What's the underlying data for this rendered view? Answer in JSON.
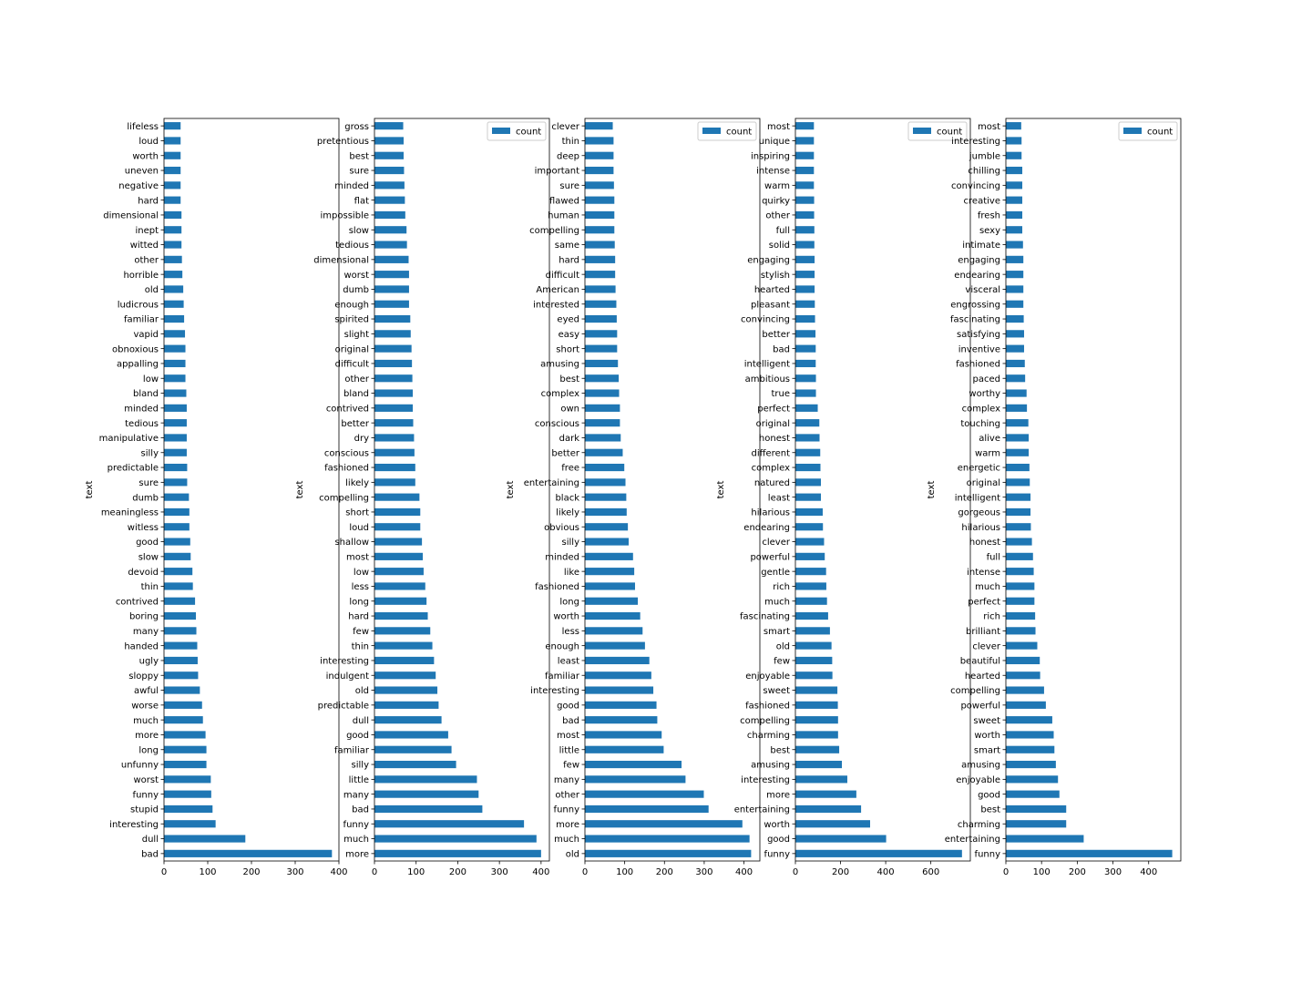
{
  "chart_data": [
    {
      "type": "bar",
      "orientation": "horizontal",
      "ylabel": "text",
      "legend": null,
      "xlim": [
        0,
        400
      ],
      "xticks": [
        0,
        100,
        200,
        300,
        400
      ],
      "series": [
        {
          "name": "count"
        }
      ],
      "categories": [
        "bad",
        "dull",
        "interesting",
        "stupid",
        "funny",
        "worst",
        "unfunny",
        "long",
        "more",
        "much",
        "worse",
        "awful",
        "sloppy",
        "ugly",
        "handed",
        "many",
        "boring",
        "contrived",
        "thin",
        "devoid",
        "slow",
        "good",
        "witless",
        "meaningless",
        "dumb",
        "sure",
        "predictable",
        "silly",
        "manipulative",
        "tedious",
        "minded",
        "bland",
        "low",
        "appalling",
        "obnoxious",
        "vapid",
        "familiar",
        "ludicrous",
        "old",
        "horrible",
        "other",
        "witted",
        "inept",
        "dimensional",
        "hard",
        "negative",
        "uneven",
        "worth",
        "loud",
        "lifeless"
      ],
      "values": [
        384,
        186,
        118,
        111,
        108,
        107,
        97,
        97,
        95,
        89,
        87,
        82,
        78,
        77,
        76,
        74,
        73,
        71,
        66,
        65,
        61,
        60,
        58,
        58,
        57,
        53,
        53,
        52,
        52,
        52,
        52,
        51,
        49,
        49,
        49,
        48,
        46,
        45,
        44,
        42,
        41,
        40,
        40,
        40,
        38,
        38,
        38,
        38,
        38,
        38
      ]
    },
    {
      "type": "bar",
      "orientation": "horizontal",
      "ylabel": "text",
      "legend": "upper right",
      "xlim": [
        0,
        420
      ],
      "xticks": [
        0,
        100,
        200,
        300,
        400
      ],
      "series": [
        {
          "name": "count"
        }
      ],
      "categories": [
        "more",
        "much",
        "funny",
        "bad",
        "many",
        "little",
        "silly",
        "familiar",
        "good",
        "dull",
        "predictable",
        "old",
        "indulgent",
        "interesting",
        "thin",
        "few",
        "hard",
        "long",
        "less",
        "low",
        "most",
        "shallow",
        "loud",
        "short",
        "compelling",
        "likely",
        "fashioned",
        "conscious",
        "dry",
        "better",
        "contrived",
        "bland",
        "other",
        "difficult",
        "original",
        "slight",
        "spirited",
        "enough",
        "dumb",
        "worst",
        "dimensional",
        "tedious",
        "slow",
        "impossible",
        "flat",
        "minded",
        "sure",
        "best",
        "pretentious",
        "gross"
      ],
      "values": [
        400,
        389,
        359,
        259,
        250,
        246,
        196,
        185,
        177,
        161,
        154,
        151,
        147,
        143,
        139,
        134,
        128,
        125,
        122,
        118,
        116,
        114,
        110,
        110,
        108,
        98,
        98,
        96,
        95,
        93,
        92,
        92,
        91,
        90,
        89,
        87,
        86,
        83,
        83,
        83,
        82,
        78,
        77,
        74,
        73,
        72,
        71,
        70,
        70,
        69
      ]
    },
    {
      "type": "bar",
      "orientation": "horizontal",
      "ylabel": "text",
      "legend": "upper right",
      "xlim": [
        0,
        440
      ],
      "xticks": [
        0,
        100,
        200,
        300,
        400
      ],
      "series": [
        {
          "name": "count"
        }
      ],
      "categories": [
        "old",
        "much",
        "more",
        "funny",
        "other",
        "many",
        "few",
        "little",
        "most",
        "bad",
        "good",
        "interesting",
        "familiar",
        "least",
        "enough",
        "less",
        "worth",
        "long",
        "fashioned",
        "like",
        "minded",
        "silly",
        "obvious",
        "likely",
        "black",
        "entertaining",
        "free",
        "better",
        "dark",
        "conscious",
        "own",
        "complex",
        "best",
        "amusing",
        "short",
        "easy",
        "eyed",
        "interested",
        "American",
        "difficult",
        "hard",
        "same",
        "compelling",
        "human",
        "flawed",
        "sure",
        "important",
        "deep",
        "thin",
        "clever"
      ],
      "values": [
        418,
        414,
        396,
        311,
        299,
        253,
        243,
        198,
        193,
        182,
        180,
        172,
        167,
        162,
        151,
        145,
        139,
        133,
        126,
        124,
        121,
        110,
        108,
        105,
        104,
        102,
        99,
        95,
        90,
        88,
        88,
        86,
        85,
        83,
        81,
        81,
        80,
        79,
        77,
        76,
        76,
        75,
        74,
        74,
        74,
        73,
        72,
        72,
        72,
        70
      ]
    },
    {
      "type": "bar",
      "orientation": "horizontal",
      "ylabel": "text",
      "legend": "upper right",
      "xlim": [
        0,
        775
      ],
      "xticks": [
        0,
        200,
        400,
        600
      ],
      "series": [
        {
          "name": "count"
        }
      ],
      "categories": [
        "funny",
        "good",
        "worth",
        "entertaining",
        "more",
        "interesting",
        "amusing",
        "best",
        "charming",
        "compelling",
        "fashioned",
        "sweet",
        "enjoyable",
        "few",
        "old",
        "smart",
        "fascinating",
        "much",
        "rich",
        "gentle",
        "powerful",
        "clever",
        "endearing",
        "hilarious",
        "least",
        "natured",
        "complex",
        "different",
        "honest",
        "original",
        "perfect",
        "true",
        "ambitious",
        "intelligent",
        "bad",
        "better",
        "convincing",
        "pleasant",
        "hearted",
        "stylish",
        "engaging",
        "solid",
        "full",
        "other",
        "quirky",
        "warm",
        "intense",
        "inspiring",
        "unique",
        "most"
      ],
      "values": [
        738,
        402,
        331,
        291,
        270,
        230,
        206,
        194,
        189,
        189,
        188,
        186,
        164,
        163,
        160,
        153,
        145,
        140,
        137,
        136,
        130,
        127,
        122,
        121,
        113,
        113,
        111,
        110,
        107,
        106,
        99,
        91,
        91,
        90,
        90,
        89,
        87,
        86,
        85,
        85,
        85,
        84,
        84,
        83,
        83,
        82,
        82,
        82,
        82,
        82
      ]
    },
    {
      "type": "bar",
      "orientation": "horizontal",
      "ylabel": "text",
      "legend": "upper right",
      "xlim": [
        0,
        490
      ],
      "xticks": [
        0,
        100,
        200,
        300,
        400
      ],
      "series": [
        {
          "name": "count"
        }
      ],
      "categories": [
        "funny",
        "entertaining",
        "charming",
        "best",
        "good",
        "enjoyable",
        "amusing",
        "smart",
        "worth",
        "sweet",
        "powerful",
        "compelling",
        "hearted",
        "beautiful",
        "clever",
        "brilliant",
        "rich",
        "perfect",
        "much",
        "intense",
        "full",
        "honest",
        "hilarious",
        "gorgeous",
        "intelligent",
        "original",
        "energetic",
        "warm",
        "alive",
        "touching",
        "complex",
        "worthy",
        "paced",
        "fashioned",
        "inventive",
        "satisfying",
        "fascinating",
        "engrossing",
        "visceral",
        "endearing",
        "engaging",
        "intimate",
        "sexy",
        "fresh",
        "creative",
        "convincing",
        "chilling",
        "jumble",
        "interesting",
        "most"
      ],
      "values": [
        466,
        218,
        169,
        169,
        150,
        146,
        140,
        136,
        134,
        130,
        112,
        107,
        96,
        95,
        88,
        83,
        82,
        80,
        80,
        78,
        76,
        73,
        70,
        69,
        69,
        67,
        66,
        64,
        64,
        63,
        59,
        58,
        54,
        53,
        51,
        51,
        50,
        49,
        49,
        49,
        49,
        48,
        46,
        46,
        46,
        46,
        46,
        44,
        44,
        43
      ]
    }
  ]
}
